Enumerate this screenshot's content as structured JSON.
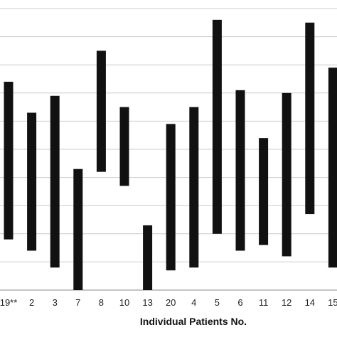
{
  "chart_data": {
    "type": "floating-bar",
    "xlabel": "Individual Patients No.",
    "ylabel": "",
    "title": "",
    "categories": [
      "19**",
      "2",
      "3",
      "7",
      "8",
      "10",
      "13",
      "20",
      "4",
      "5",
      "6",
      "11",
      "12",
      "14",
      "15"
    ],
    "low": [
      1.8,
      1.4,
      0.8,
      0.0,
      4.2,
      3.7,
      0.0,
      0.7,
      0.8,
      2.0,
      1.4,
      1.6,
      1.2,
      2.7,
      0.8
    ],
    "high": [
      7.4,
      6.3,
      6.9,
      4.3,
      8.5,
      6.5,
      2.3,
      5.9,
      6.5,
      9.6,
      7.1,
      5.4,
      7.0,
      9.5,
      7.9
    ],
    "ylim": [
      0,
      10
    ],
    "yticks": [
      0,
      1,
      2,
      3,
      4,
      5,
      6,
      7,
      8,
      9,
      10
    ],
    "grid": true,
    "bar_color": "#111111",
    "grid_color": "#cccccc"
  }
}
